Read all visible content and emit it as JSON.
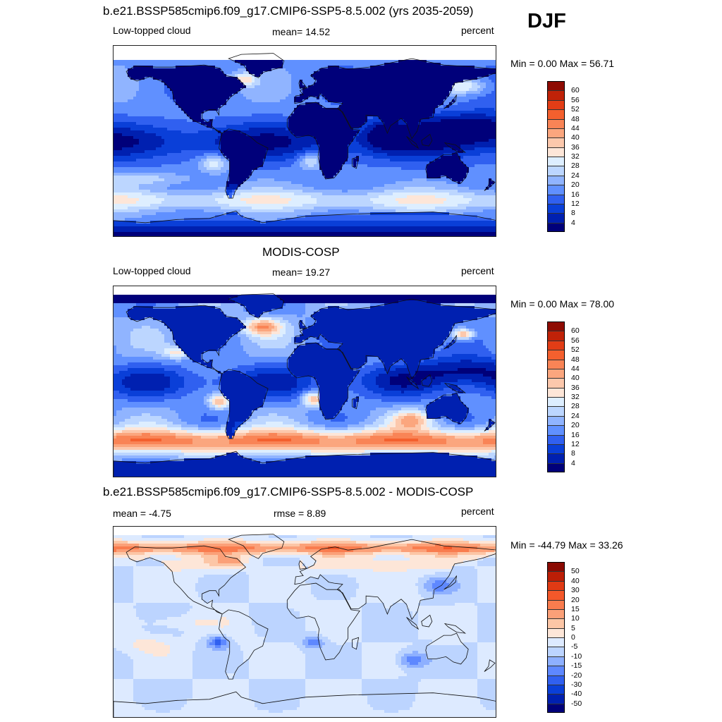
{
  "season": "DJF",
  "palettes": {
    "abs": [
      "#00007a",
      "#0020b0",
      "#0a3fd8",
      "#3060f0",
      "#6090ff",
      "#90b4ff",
      "#bcd6ff",
      "#ddeeff",
      "#fde6d8",
      "#fcc8ac",
      "#fba67e",
      "#f98456",
      "#f4602e",
      "#e23d16",
      "#c02208",
      "#8e0b02"
    ],
    "diff": [
      "#00007a",
      "#0020b0",
      "#0a3fd8",
      "#3060f0",
      "#5e88ff",
      "#8eb0ff",
      "#bcd4ff",
      "#ddeaff",
      "#fde6d8",
      "#fcc6a6",
      "#fba078",
      "#f97c4e",
      "#f4582a",
      "#e03a14",
      "#bc1e06",
      "#8a0a02"
    ]
  },
  "panels": [
    {
      "id": "test",
      "main_title": "b.e21.BSSP585cmip6.f09_g17.CMIP6-SSP5-8.5.002 (yrs 2035-2059)",
      "left_label": "Low-topped cloud",
      "center_label": "mean=  14.52",
      "right_label": "percent",
      "minmax": "Min =   0.00 Max =  56.71",
      "palette": "abs",
      "ticks": [
        "4",
        "8",
        "12",
        "16",
        "20",
        "24",
        "28",
        "32",
        "36",
        "40",
        "44",
        "48",
        "52",
        "56",
        "60"
      ]
    },
    {
      "id": "obs",
      "main_title": "MODIS-COSP",
      "left_label": "Low-topped cloud",
      "center_label": "mean=  19.27",
      "right_label": "percent",
      "minmax": "Min =   0.00 Max =  78.00",
      "palette": "abs",
      "ticks": [
        "4",
        "8",
        "12",
        "16",
        "20",
        "24",
        "28",
        "32",
        "36",
        "40",
        "44",
        "48",
        "52",
        "56",
        "60"
      ]
    },
    {
      "id": "diff",
      "main_title": "b.e21.BSSP585cmip6.f09_g17.CMIP6-SSP5-8.5.002 - MODIS-COSP",
      "left_label": "mean =  -4.75",
      "center_label": "rmse =   8.89",
      "right_label": "percent",
      "minmax": "Min = -44.79 Max =  33.26",
      "palette": "diff",
      "ticks": [
        "-50",
        "-40",
        "-30",
        "-20",
        "-15",
        "-10",
        "-5",
        "0",
        "5",
        "10",
        "15",
        "20",
        "30",
        "40",
        "50"
      ]
    }
  ],
  "chart_data": [
    {
      "type": "heatmap",
      "title": "b.e21.BSSP585cmip6.f09_g17.CMIP6-SSP5-8.5.002 (yrs 2035-2059)",
      "variable": "Low-topped cloud",
      "units": "percent",
      "mean": 14.52,
      "min": 0.0,
      "max": 56.71,
      "colorbar_levels": [
        4,
        8,
        12,
        16,
        20,
        24,
        28,
        32,
        36,
        40,
        44,
        48,
        52,
        56,
        60
      ]
    },
    {
      "type": "heatmap",
      "title": "MODIS-COSP",
      "variable": "Low-topped cloud",
      "units": "percent",
      "mean": 19.27,
      "min": 0.0,
      "max": 78.0,
      "colorbar_levels": [
        4,
        8,
        12,
        16,
        20,
        24,
        28,
        32,
        36,
        40,
        44,
        48,
        52,
        56,
        60
      ]
    },
    {
      "type": "heatmap",
      "title": "b.e21.BSSP585cmip6.f09_g17.CMIP6-SSP5-8.5.002 - MODIS-COSP",
      "units": "percent",
      "mean": -4.75,
      "rmse": 8.89,
      "min": -44.79,
      "max": 33.26,
      "colorbar_levels": [
        -50,
        -40,
        -30,
        -20,
        -15,
        -10,
        -5,
        0,
        5,
        10,
        15,
        20,
        30,
        40,
        50
      ]
    }
  ]
}
